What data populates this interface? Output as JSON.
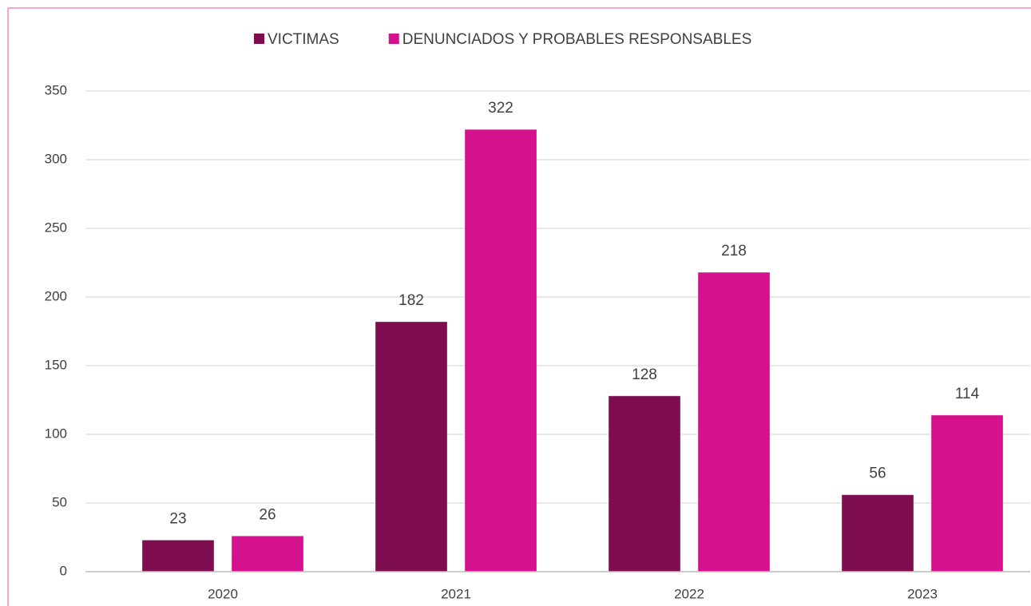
{
  "chart_data": {
    "type": "bar",
    "categories": [
      "2020",
      "2021",
      "2022",
      "2023"
    ],
    "series": [
      {
        "name": "VICTIMAS",
        "color": "#7d0d4f",
        "values": [
          23,
          182,
          128,
          56
        ]
      },
      {
        "name": "DENUNCIADOS Y PROBABLES RESPONSABLES",
        "color": "#d5118d",
        "values": [
          26,
          322,
          218,
          114
        ]
      }
    ],
    "ylim": [
      0,
      350
    ],
    "yticks": [
      0,
      50,
      100,
      150,
      200,
      250,
      300,
      350
    ],
    "grid": true,
    "legend": "top"
  }
}
